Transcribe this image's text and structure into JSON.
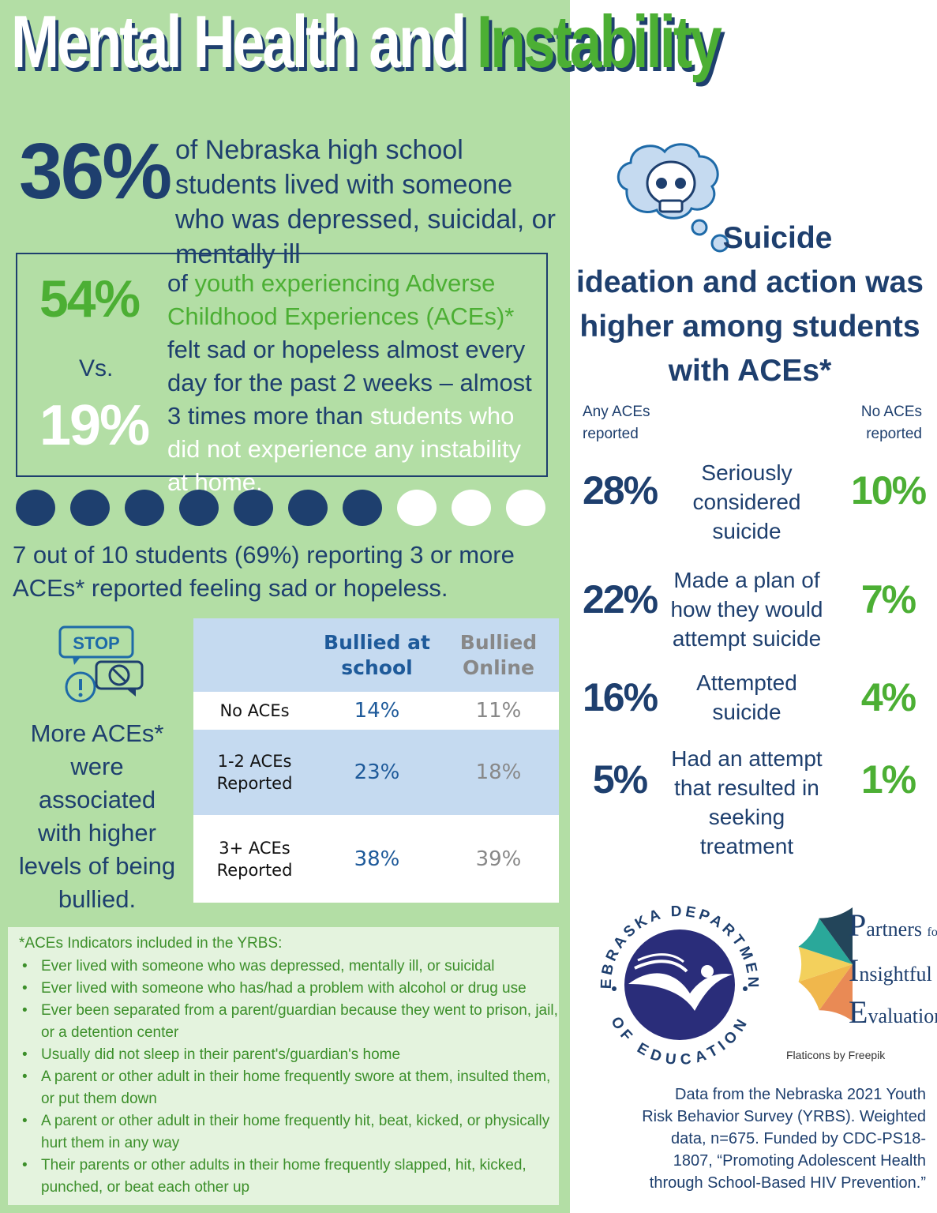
{
  "title": {
    "part1": "Mental Health and",
    "part2": "Instability"
  },
  "stat_36": {
    "value": "36%",
    "text": "of Nebraska high school students lived with someone who was depressed, suicidal, or mentally ill"
  },
  "comparison": {
    "value_aces": "54%",
    "vs": "Vs.",
    "value_no_aces": "19%",
    "text_1": "of ",
    "text_2_green": "youth experiencing Adverse Childhood Experiences (ACEs)*",
    "text_3": " felt sad or hopeless almost every day for the past 2 weeks – almost 3 times more than ",
    "text_4_white": "students who did not experience any instability at home."
  },
  "dots": {
    "filled": 7,
    "total": 10
  },
  "stat_7_of_10": "7 out of 10 students (69%) reporting 3 or more ACEs* reported feeling sad or hopeless.",
  "bullying": {
    "icon_label": "STOP",
    "text": "More ACEs* were associated with higher levels of being bullied.",
    "table": {
      "headers": [
        "",
        "Bullied at school",
        "Bullied Online"
      ],
      "rows": [
        [
          "No ACEs",
          "14%",
          "11%"
        ],
        [
          "1-2 ACEs Reported",
          "23%",
          "18%"
        ],
        [
          "3+ ACEs Reported",
          "38%",
          "39%"
        ]
      ]
    }
  },
  "aces_indicators": {
    "title": "*ACEs Indicators included in the YRBS:",
    "items": [
      "Ever lived with someone who was depressed, mentally ill, or suicidal",
      "Ever lived with someone who has/had a problem with alcohol or drug use",
      "Ever been separated from a parent/guardian because they went to prison, jail, or a detention center",
      "Usually did not sleep in their parent's/guardian's home",
      "A parent or other adult in their home frequently swore at them, insulted them, or put them down",
      "A parent or other adult in their home frequently hit, beat, kicked, or physically hurt them in any way",
      "Their parents or other adults in their home frequently slapped, hit, kicked, punched, or beat each other up"
    ]
  },
  "suicide": {
    "heading_1": "Suicide",
    "heading_2": "ideation and action was higher among students with ACEs*",
    "col_any": "Any ACEs reported",
    "col_no": "No ACEs reported",
    "rows": [
      {
        "any": "28%",
        "label": "Seriously considered suicide",
        "no": "10%"
      },
      {
        "any": "22%",
        "label": "Made a plan of how they would attempt suicide",
        "no": "7%"
      },
      {
        "any": "16%",
        "label": "Attempted suicide",
        "no": "4%"
      },
      {
        "any": "5%",
        "label": "Had an attempt that resulted in seeking treatment",
        "no": "1%"
      }
    ]
  },
  "logos": {
    "nde_top": "NEBRASKA DEPARTMENT",
    "nde_bottom": "OF EDUCATION",
    "pie_p": "P",
    "pie_p_rest": "artners",
    "pie_for": "for",
    "pie_i": "I",
    "pie_i_rest": "nsightful",
    "pie_e": "E",
    "pie_e_rest": "valuation",
    "pie_colors": [
      "#e98a55",
      "#f0b74c",
      "#f3d05c",
      "#2aa89a",
      "#23455a"
    ],
    "flaticons": "Flaticons by Freepik"
  },
  "data_note": "Data from the Nebraska 2021 Youth Risk Behavior Survey (YRBS). Weighted data, n=675. Funded by CDC-PS18-1807, “Promoting Adolescent Health through School-Based HIV Prevention.”"
}
